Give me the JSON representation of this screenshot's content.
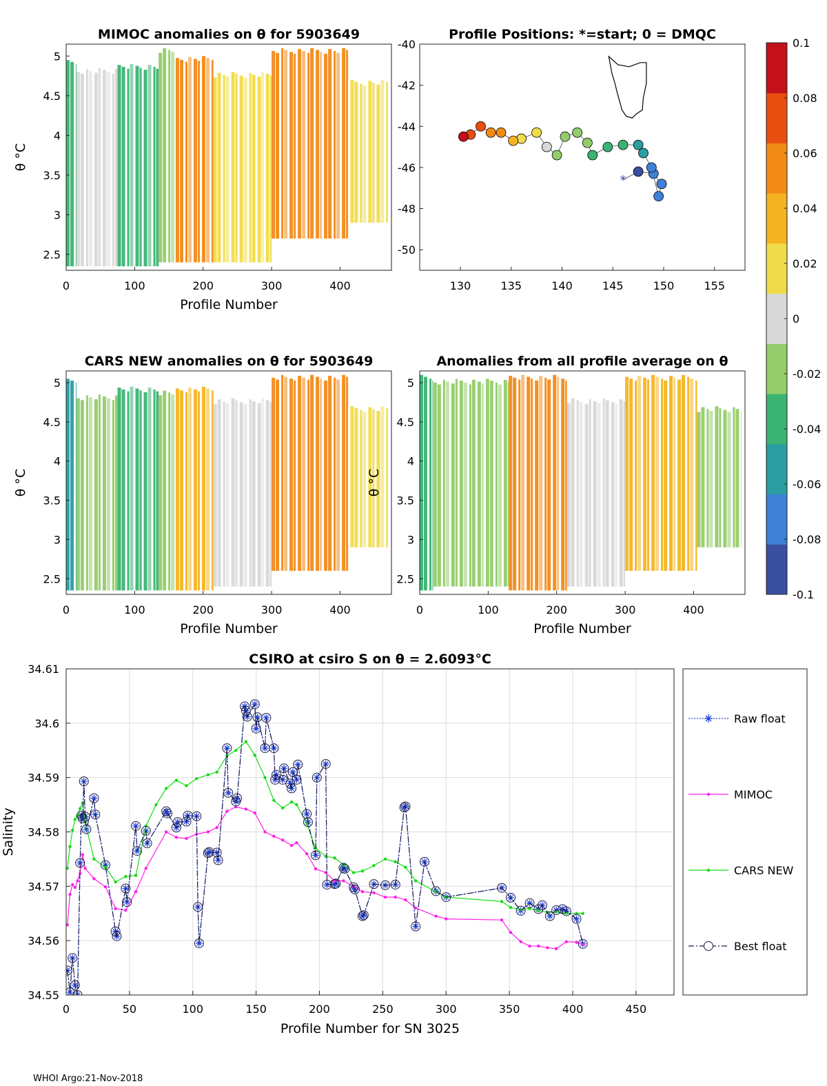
{
  "chart_data": [
    {
      "type": "heatmap",
      "title": "MIMOC anomalies on θ  for 5903649",
      "xlabel": "Profile Number",
      "ylabel": "θ °C",
      "xlim": [
        0,
        475
      ],
      "ylim": [
        2.3,
        5.15
      ],
      "xticks": [
        "0",
        "100",
        "200",
        "300",
        "400"
      ],
      "yticks": [
        "2.5",
        "3",
        "3.5",
        "4",
        "4.5",
        "5"
      ],
      "bands": [
        {
          "x0": 0,
          "x1": 15,
          "ytop": 4.95,
          "ybot": 2.35,
          "value": -0.03
        },
        {
          "x0": 15,
          "x1": 75,
          "ytop": 4.85,
          "ybot": 2.35,
          "value": 0.0
        },
        {
          "x0": 75,
          "x1": 135,
          "ytop": 4.9,
          "ybot": 2.35,
          "value": -0.045
        },
        {
          "x0": 135,
          "x1": 160,
          "ytop": 5.1,
          "ybot": 2.4,
          "value": -0.02
        },
        {
          "x0": 160,
          "x1": 215,
          "ytop": 5.0,
          "ybot": 2.4,
          "value": 0.05
        },
        {
          "x0": 215,
          "x1": 300,
          "ytop": 4.8,
          "ybot": 2.4,
          "value": 0.01
        },
        {
          "x0": 300,
          "x1": 415,
          "ytop": 5.1,
          "ybot": 2.7,
          "value": 0.06
        },
        {
          "x0": 415,
          "x1": 470,
          "ytop": 4.7,
          "ybot": 2.9,
          "value": 0.01
        }
      ]
    },
    {
      "type": "scatter",
      "title": "Profile Positions: *=start; 0 = DMQC",
      "xlim": [
        126,
        158
      ],
      "ylim": [
        -51,
        -40
      ],
      "xticks": [
        "130",
        "135",
        "140",
        "145",
        "150",
        "155"
      ],
      "yticks": [
        "-40",
        "-42",
        "-44",
        "-46",
        "-48",
        "-50"
      ],
      "start_marker": "*",
      "track": [
        {
          "lon": 146,
          "lat": -46.6,
          "value": -0.09
        },
        {
          "lon": 147.5,
          "lat": -46.2,
          "value": -0.085
        },
        {
          "lon": 149,
          "lat": -46.3,
          "value": -0.08
        },
        {
          "lon": 149.8,
          "lat": -46.8,
          "value": -0.075
        },
        {
          "lon": 149.5,
          "lat": -47.4,
          "value": -0.08
        },
        {
          "lon": 148.8,
          "lat": -46.0,
          "value": -0.07
        },
        {
          "lon": 148,
          "lat": -45.3,
          "value": -0.06
        },
        {
          "lon": 147.5,
          "lat": -44.9,
          "value": -0.05
        },
        {
          "lon": 146,
          "lat": -44.9,
          "value": -0.04
        },
        {
          "lon": 144.5,
          "lat": -45.0,
          "value": -0.035
        },
        {
          "lon": 143,
          "lat": -45.4,
          "value": -0.03
        },
        {
          "lon": 142.5,
          "lat": -44.8,
          "value": -0.025
        },
        {
          "lon": 141.5,
          "lat": -44.3,
          "value": -0.02
        },
        {
          "lon": 140.3,
          "lat": -44.5,
          "value": -0.015
        },
        {
          "lon": 139.5,
          "lat": -45.4,
          "value": -0.01
        },
        {
          "lon": 138.5,
          "lat": -45.0,
          "value": 0.0
        },
        {
          "lon": 137.5,
          "lat": -44.3,
          "value": 0.01
        },
        {
          "lon": 136,
          "lat": -44.6,
          "value": 0.02
        },
        {
          "lon": 135.2,
          "lat": -44.7,
          "value": 0.035
        },
        {
          "lon": 134,
          "lat": -44.3,
          "value": 0.05
        },
        {
          "lon": 133,
          "lat": -44.3,
          "value": 0.06
        },
        {
          "lon": 132,
          "lat": -44.0,
          "value": 0.07
        },
        {
          "lon": 131,
          "lat": -44.4,
          "value": 0.08
        },
        {
          "lon": 130.3,
          "lat": -44.5,
          "value": 0.09
        }
      ],
      "coastline": "Tasmania"
    },
    {
      "type": "heatmap",
      "title": "CARS NEW anomalies on θ for 5903649",
      "xlabel": "Profile Number",
      "ylabel": "θ °C",
      "xlim": [
        0,
        475
      ],
      "ylim": [
        2.3,
        5.15
      ],
      "xticks": [
        "0",
        "100",
        "200",
        "300",
        "400"
      ],
      "yticks": [
        "2.5",
        "3",
        "3.5",
        "4",
        "4.5",
        "5"
      ],
      "bands": [
        {
          "x0": 0,
          "x1": 15,
          "ytop": 5.05,
          "ybot": 2.35,
          "value": -0.06
        },
        {
          "x0": 15,
          "x1": 75,
          "ytop": 4.85,
          "ybot": 2.35,
          "value": -0.02
        },
        {
          "x0": 75,
          "x1": 135,
          "ytop": 4.95,
          "ybot": 2.35,
          "value": -0.04
        },
        {
          "x0": 135,
          "x1": 160,
          "ytop": 4.9,
          "ybot": 2.35,
          "value": -0.01
        },
        {
          "x0": 160,
          "x1": 215,
          "ytop": 4.95,
          "ybot": 2.35,
          "value": 0.04
        },
        {
          "x0": 215,
          "x1": 300,
          "ytop": 4.8,
          "ybot": 2.4,
          "value": 0.005
        },
        {
          "x0": 300,
          "x1": 415,
          "ytop": 5.1,
          "ybot": 2.6,
          "value": 0.05
        },
        {
          "x0": 415,
          "x1": 470,
          "ytop": 4.7,
          "ybot": 2.9,
          "value": 0.01
        }
      ]
    },
    {
      "type": "heatmap",
      "title": "Anomalies from all profile average on θ",
      "xlabel": "Profile Number",
      "ylabel": "θ °C",
      "xlim": [
        0,
        475
      ],
      "ylim": [
        2.3,
        5.15
      ],
      "xticks": [
        "0",
        "100",
        "200",
        "300",
        "400"
      ],
      "yticks": [
        "2.5",
        "3",
        "3.5",
        "4",
        "4.5",
        "5"
      ],
      "bands": [
        {
          "x0": 0,
          "x1": 20,
          "ytop": 5.1,
          "ybot": 2.35,
          "value": -0.03
        },
        {
          "x0": 20,
          "x1": 130,
          "ytop": 5.05,
          "ybot": 2.4,
          "value": -0.01
        },
        {
          "x0": 130,
          "x1": 215,
          "ytop": 5.1,
          "ybot": 2.35,
          "value": 0.05
        },
        {
          "x0": 215,
          "x1": 300,
          "ytop": 4.8,
          "ybot": 2.4,
          "value": 0.0
        },
        {
          "x0": 300,
          "x1": 405,
          "ytop": 5.1,
          "ybot": 2.6,
          "value": 0.04
        },
        {
          "x0": 405,
          "x1": 470,
          "ytop": 4.7,
          "ybot": 2.9,
          "value": -0.01
        }
      ]
    },
    {
      "type": "colorbar",
      "range": [
        -0.1,
        0.1
      ],
      "ticks": [
        "0.1",
        "0.08",
        "0.06",
        "0.04",
        "0.02",
        "0",
        "-0.02",
        "-0.04",
        "-0.06",
        "-0.08",
        "-0.1"
      ],
      "colors": [
        "#3a4fa0",
        "#3f7fd6",
        "#2a9ea0",
        "#3bb373",
        "#93cc6a",
        "#d8d8d8",
        "#f0dc4a",
        "#f4b422",
        "#f28a18",
        "#e84e10",
        "#c3101a"
      ]
    },
    {
      "type": "line",
      "title": "CSIRO at csiro S on θ = 2.6093°C",
      "xlabel": "Profile Number for SN 3025",
      "ylabel": "Salinity",
      "xlim": [
        0,
        480
      ],
      "ylim": [
        34.55,
        34.61
      ],
      "xticks": [
        "0",
        "50",
        "100",
        "150",
        "200",
        "250",
        "300",
        "350",
        "400",
        "450"
      ],
      "yticks": [
        "34.55",
        "34.56",
        "34.57",
        "34.58",
        "34.59",
        "34.6",
        "34.61"
      ],
      "grid": true,
      "legend_position": "right",
      "series": [
        {
          "name": "Raw float",
          "color": "#1f3fd8",
          "marker": "*",
          "x": [
            1,
            3,
            5,
            7,
            9,
            11,
            12,
            13,
            14,
            15,
            16,
            22,
            23,
            31,
            39,
            40,
            47,
            48,
            55,
            56,
            63,
            64,
            79,
            80,
            87,
            88,
            95,
            96,
            103,
            104,
            105,
            112,
            113,
            119,
            120,
            127,
            128,
            134,
            135,
            141,
            142,
            143,
            149,
            150,
            151,
            157,
            158,
            164,
            165,
            166,
            171,
            172,
            177,
            178,
            179,
            182,
            183,
            190,
            191,
            197,
            198,
            205,
            206,
            212,
            213,
            219,
            220,
            227,
            228,
            234,
            235,
            243,
            252,
            260,
            267,
            268,
            276,
            283,
            292,
            300,
            344,
            351,
            359,
            366,
            373,
            376,
            382,
            387,
            392,
            395,
            403,
            408
          ],
          "y": [
            34.5545,
            34.5505,
            34.5568,
            34.5518,
            34.55,
            34.5743,
            34.583,
            34.5825,
            34.5893,
            34.5828,
            34.5805,
            34.5862,
            34.5832,
            34.5739,
            34.5617,
            34.5608,
            34.5696,
            34.5671,
            34.5811,
            34.5765,
            34.5802,
            34.5779,
            34.5838,
            34.5834,
            34.5808,
            34.5818,
            34.5819,
            34.583,
            34.5829,
            34.5662,
            34.5595,
            34.5761,
            34.5763,
            34.5762,
            34.5748,
            34.5954,
            34.5872,
            34.5856,
            34.5862,
            34.6031,
            34.6023,
            34.6012,
            34.6035,
            34.599,
            34.6011,
            34.5954,
            34.601,
            34.5954,
            34.5896,
            34.5905,
            34.5896,
            34.5917,
            34.5889,
            34.588,
            34.591,
            34.5896,
            34.5924,
            34.5833,
            34.5818,
            34.5757,
            34.59,
            34.5925,
            34.5703,
            34.5704,
            34.5705,
            34.5734,
            34.5732,
            34.5698,
            34.5694,
            34.5645,
            34.5647,
            34.5704,
            34.5702,
            34.5703,
            34.5845,
            34.5847,
            34.5626,
            34.5745,
            34.5691,
            34.568,
            34.5697,
            34.5679,
            34.5655,
            34.5669,
            34.5658,
            34.5665,
            34.5645,
            34.5656,
            34.5658,
            34.5654,
            34.564,
            34.5594
          ]
        },
        {
          "name": "MIMOC",
          "color": "#ff1fe6",
          "marker": ".",
          "x": [
            1,
            3,
            5,
            7,
            9,
            11,
            13,
            15,
            22,
            31,
            39,
            47,
            55,
            63,
            79,
            87,
            95,
            103,
            112,
            119,
            127,
            134,
            142,
            149,
            157,
            164,
            171,
            178,
            182,
            190,
            197,
            205,
            212,
            219,
            227,
            234,
            243,
            252,
            260,
            268,
            276,
            292,
            300,
            344,
            351,
            359,
            366,
            373,
            380,
            387,
            395,
            403,
            408
          ],
          "y": [
            34.5629,
            34.5685,
            34.5703,
            34.5698,
            34.571,
            34.5724,
            34.5758,
            34.5733,
            34.5714,
            34.5699,
            34.5659,
            34.5656,
            34.569,
            34.5733,
            34.58,
            34.579,
            34.5788,
            34.5796,
            34.58,
            34.5808,
            34.5838,
            34.5846,
            34.5842,
            34.5835,
            34.58,
            34.5792,
            34.5785,
            34.5775,
            34.578,
            34.576,
            34.5732,
            34.5725,
            34.571,
            34.571,
            34.57,
            34.569,
            34.5688,
            34.568,
            34.568,
            34.5675,
            34.566,
            34.5645,
            34.564,
            34.5638,
            34.5615,
            34.5598,
            34.559,
            34.559,
            34.5587,
            34.5585,
            34.5598,
            34.5597,
            34.5593
          ]
        },
        {
          "name": "CARS NEW",
          "color": "#14dc14",
          "marker": ".",
          "x": [
            1,
            3,
            5,
            7,
            9,
            11,
            13,
            15,
            22,
            31,
            39,
            47,
            55,
            63,
            71,
            79,
            87,
            95,
            103,
            112,
            119,
            127,
            134,
            142,
            149,
            157,
            164,
            171,
            178,
            182,
            190,
            197,
            205,
            212,
            219,
            227,
            234,
            243,
            252,
            260,
            268,
            276,
            292,
            300,
            344,
            351,
            359,
            366,
            373,
            380,
            387,
            395,
            403,
            408
          ],
          "y": [
            34.5733,
            34.5773,
            34.5803,
            34.5823,
            34.583,
            34.5843,
            34.5853,
            34.5818,
            34.575,
            34.5735,
            34.5708,
            34.5718,
            34.572,
            34.5811,
            34.585,
            34.588,
            34.5895,
            34.5885,
            34.5898,
            34.5905,
            34.591,
            34.594,
            34.595,
            34.5966,
            34.5941,
            34.59,
            34.5858,
            34.5844,
            34.5855,
            34.585,
            34.5815,
            34.577,
            34.5755,
            34.5752,
            34.574,
            34.5725,
            34.5728,
            34.5738,
            34.575,
            34.5745,
            34.5735,
            34.571,
            34.569,
            34.568,
            34.5672,
            34.5661,
            34.5657,
            34.5659,
            34.5655,
            34.5652,
            34.5653,
            34.565,
            34.565,
            34.565
          ]
        },
        {
          "name": "Best float",
          "color": "#1a1a4a",
          "marker": "o",
          "x": [
            1,
            3,
            5,
            7,
            9,
            11,
            12,
            13,
            14,
            15,
            16,
            22,
            23,
            31,
            39,
            40,
            47,
            48,
            55,
            56,
            63,
            64,
            79,
            80,
            87,
            88,
            95,
            96,
            103,
            104,
            105,
            112,
            113,
            119,
            120,
            127,
            128,
            134,
            135,
            141,
            142,
            143,
            149,
            150,
            151,
            157,
            158,
            164,
            165,
            166,
            171,
            172,
            177,
            178,
            179,
            182,
            183,
            190,
            191,
            197,
            198,
            205,
            206,
            212,
            213,
            219,
            220,
            227,
            228,
            234,
            235,
            243,
            252,
            260,
            267,
            268,
            276,
            283,
            292,
            300,
            344,
            351,
            359,
            366,
            373,
            376,
            382,
            387,
            392,
            395,
            403,
            408
          ],
          "y": [
            34.5545,
            34.5505,
            34.5568,
            34.5518,
            34.55,
            34.5743,
            34.583,
            34.5825,
            34.5893,
            34.5828,
            34.5805,
            34.5862,
            34.5832,
            34.5739,
            34.5617,
            34.5608,
            34.5696,
            34.5671,
            34.5811,
            34.5765,
            34.5802,
            34.5779,
            34.5838,
            34.5834,
            34.5808,
            34.5818,
            34.5819,
            34.583,
            34.5829,
            34.5662,
            34.5595,
            34.5761,
            34.5763,
            34.5762,
            34.5748,
            34.5954,
            34.5872,
            34.5856,
            34.5862,
            34.6031,
            34.6023,
            34.6012,
            34.6035,
            34.599,
            34.6011,
            34.5954,
            34.601,
            34.5954,
            34.5896,
            34.5905,
            34.5896,
            34.5917,
            34.5889,
            34.588,
            34.591,
            34.5896,
            34.5924,
            34.5833,
            34.5818,
            34.5757,
            34.59,
            34.5925,
            34.5703,
            34.5704,
            34.5705,
            34.5734,
            34.5732,
            34.5698,
            34.5694,
            34.5645,
            34.5647,
            34.5704,
            34.5702,
            34.5703,
            34.5845,
            34.5847,
            34.5626,
            34.5745,
            34.5691,
            34.568,
            34.5697,
            34.5679,
            34.5655,
            34.5669,
            34.5658,
            34.5665,
            34.5645,
            34.5656,
            34.5658,
            34.5654,
            34.564,
            34.5594
          ]
        }
      ]
    }
  ],
  "footer": "WHOI Argo:21-Nov-2018"
}
